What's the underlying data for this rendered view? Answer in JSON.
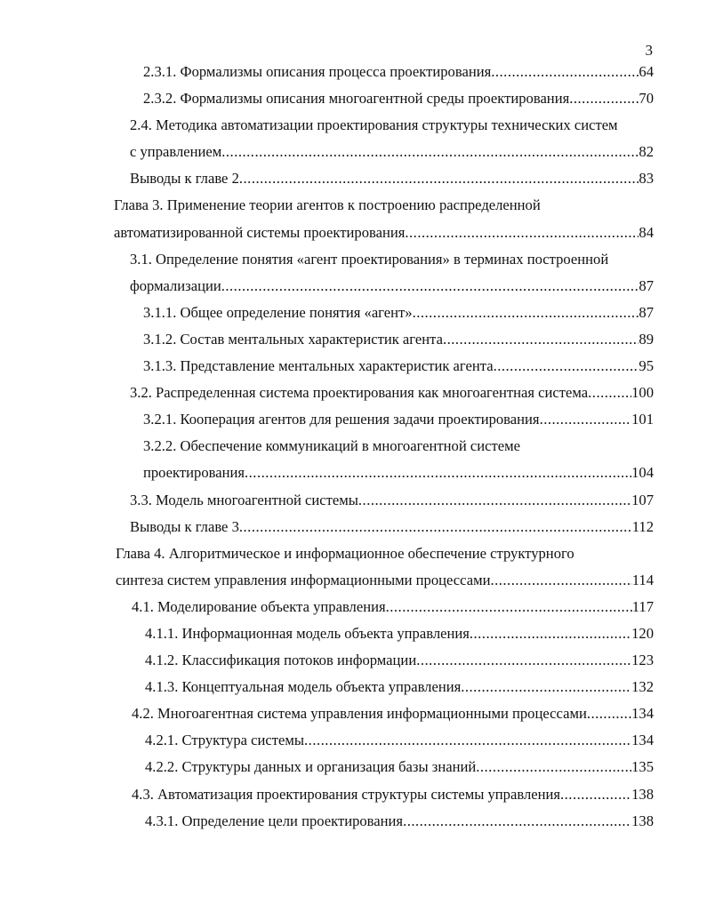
{
  "page_number": "3",
  "entries": [
    {
      "level": 2,
      "lines": [
        "2.3.1. Формализмы описания процесса проектирования "
      ],
      "page": "64"
    },
    {
      "level": 2,
      "lines": [
        "2.3.2. Формализмы описания многоагентной среды проектирования"
      ],
      "page": "70"
    },
    {
      "level": 1,
      "lines": [
        "2.4. Методика автоматизации проектирования структуры технических систем",
        "с управлением "
      ],
      "page": "82"
    },
    {
      "level": 1,
      "lines": [
        "Выводы к главе 2 "
      ],
      "page": "83"
    },
    {
      "level": 0,
      "lines": [
        "Глава 3. Применение теории агентов к построению распределенной",
        "автоматизированной системы проектирования"
      ],
      "page": "84"
    },
    {
      "level": 1,
      "lines": [
        "3.1. Определение понятия «агент проектирования» в терминах построенной",
        "формализации"
      ],
      "page": "87"
    },
    {
      "level": 2,
      "lines": [
        "3.1.1. Общее определение понятия «агент»"
      ],
      "page": "87"
    },
    {
      "level": 2,
      "lines": [
        "3.1.2. Состав ментальных характеристик агента"
      ],
      "page": "89"
    },
    {
      "level": 2,
      "lines": [
        "3.1.3. Представление ментальных характеристик агента"
      ],
      "page": "95"
    },
    {
      "level": 1,
      "lines": [
        "3.2. Распределенная система проектирования как многоагентная система "
      ],
      "page": "100"
    },
    {
      "level": 2,
      "lines": [
        "3.2.1. Кооперация агентов для решения задачи проектирования"
      ],
      "page": "101"
    },
    {
      "level": 2,
      "lines": [
        "3.2.2. Обеспечение коммуникаций в многоагентной системе",
        "проектирования "
      ],
      "page": "104"
    },
    {
      "level": 1,
      "lines": [
        "3.3. Модель многоагентной системы"
      ],
      "page": "107"
    },
    {
      "level": 1,
      "lines": [
        "Выводы к главе 3 "
      ],
      "page": "112"
    },
    {
      "level": 0,
      "ch4": true,
      "lines": [
        "Глава 4. Алгоритмическое и информационное обеспечение структурного",
        "синтеза систем управления информационными процессами "
      ],
      "page": "114"
    },
    {
      "level": 1,
      "ch4": true,
      "lines": [
        "4.1. Моделирование объекта управления"
      ],
      "page": "117"
    },
    {
      "level": 2,
      "ch4": true,
      "lines": [
        "4.1.1. Информационная модель объекта управления "
      ],
      "page": "120"
    },
    {
      "level": 2,
      "ch4": true,
      "lines": [
        "4.1.2. Классификация потоков информации"
      ],
      "page": "123"
    },
    {
      "level": 2,
      "ch4": true,
      "lines": [
        "4.1.3. Концептуальная модель объекта управления"
      ],
      "page": "132"
    },
    {
      "level": 1,
      "ch4": true,
      "lines": [
        "4.2. Многоагентная система управления информационными процессами "
      ],
      "page": "134"
    },
    {
      "level": 2,
      "ch4": true,
      "lines": [
        "4.2.1. Структура системы"
      ],
      "page": "134"
    },
    {
      "level": 2,
      "ch4": true,
      "lines": [
        "4.2.2. Структуры данных и организация базы знаний"
      ],
      "page": "135"
    },
    {
      "level": 1,
      "ch4": true,
      "lines": [
        "4.3. Автоматизация проектирования структуры системы управления "
      ],
      "page": "138"
    },
    {
      "level": 2,
      "ch4": true,
      "lines": [
        "4.3.1. Определение цели проектирования"
      ],
      "page": "138"
    }
  ]
}
